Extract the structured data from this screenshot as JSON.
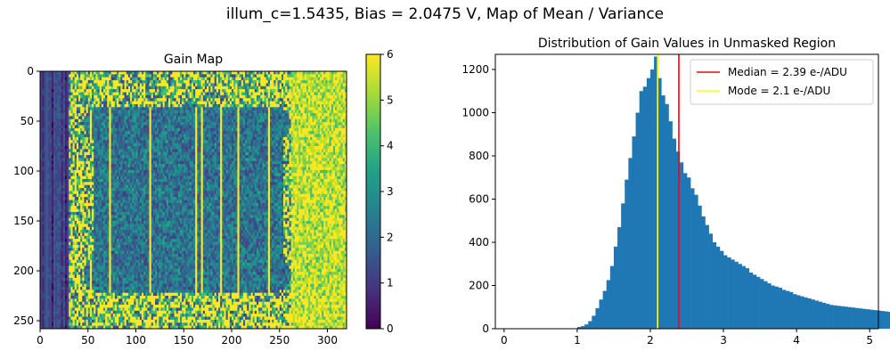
{
  "figure": {
    "title": "illum_c=1.5435, Bias = 2.0475 V, Map of Mean / Variance"
  },
  "chart_data": [
    {
      "type": "heatmap",
      "title": "Gain Map",
      "colormap": "viridis",
      "xlim": [
        0,
        320
      ],
      "ylim": [
        0,
        258
      ],
      "x_ticks": [
        0,
        50,
        100,
        150,
        200,
        250,
        300
      ],
      "y_ticks": [
        0,
        50,
        100,
        150,
        200,
        250
      ],
      "colorbar": {
        "range": [
          0,
          6
        ],
        "ticks": [
          0,
          1,
          2,
          3,
          4,
          5,
          6
        ]
      },
      "regions": [
        {
          "name": "left dark columns",
          "x_range": [
            0,
            30
          ],
          "typical_value": 1.0
        },
        {
          "name": "noisy background",
          "x_range": [
            30,
            320
          ],
          "typical_value": 4.0
        },
        {
          "name": "masked rounded rectangle top",
          "x_range": [
            45,
            262
          ],
          "y_range": [
            35,
            70
          ],
          "typical_value": 2.3
        },
        {
          "name": "masked rounded rectangle bottom",
          "x_range": [
            45,
            262
          ],
          "y_range": [
            185,
            222
          ],
          "typical_value": 2.3
        },
        {
          "name": "bright right band",
          "x_range": [
            262,
            320
          ],
          "typical_value": 5.5
        }
      ]
    },
    {
      "type": "bar",
      "title": "Distribution of Gain Values in Unmasked Region",
      "xlim": [
        -0.12,
        5.12
      ],
      "ylim": [
        0,
        1270
      ],
      "x_ticks": [
        0,
        1,
        2,
        3,
        4,
        5
      ],
      "y_ticks": [
        0,
        200,
        400,
        600,
        800,
        1000,
        1200
      ],
      "bin_width": 0.05,
      "bin_start": 0.0,
      "counts": [
        0,
        0,
        0,
        0,
        0,
        0,
        0,
        0,
        0,
        0,
        0,
        0,
        0,
        0,
        0,
        0,
        0,
        0,
        1,
        2,
        8,
        12,
        20,
        35,
        60,
        95,
        135,
        175,
        225,
        290,
        380,
        470,
        580,
        690,
        790,
        890,
        1000,
        1100,
        1120,
        1160,
        1200,
        1260,
        1160,
        1080,
        1040,
        960,
        880,
        820,
        770,
        720,
        700,
        650,
        620,
        570,
        520,
        480,
        440,
        400,
        380,
        360,
        340,
        330,
        320,
        310,
        300,
        290,
        280,
        260,
        250,
        240,
        230,
        220,
        210,
        200,
        195,
        190,
        180,
        175,
        170,
        160,
        155,
        150,
        145,
        140,
        135,
        130,
        125,
        120,
        115,
        110,
        108,
        106,
        104,
        102,
        100,
        98,
        96,
        94,
        92,
        90,
        88,
        86,
        84,
        82,
        80,
        78,
        76,
        74,
        72,
        70
      ],
      "color": "#1f77b4",
      "lines": [
        {
          "label": "Median = 2.39 e-/ADU",
          "x": 2.39,
          "color": "#ff0000"
        },
        {
          "label": "Mode = 2.1 e-/ADU",
          "x": 2.1,
          "color": "#ffff00"
        }
      ],
      "legend": "top-right"
    }
  ]
}
